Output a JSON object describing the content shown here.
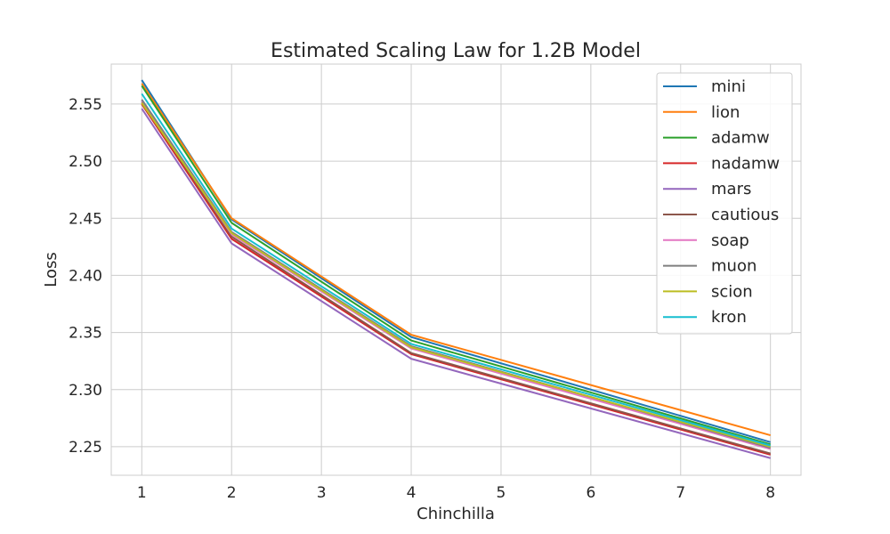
{
  "chart_data": {
    "type": "line",
    "title": "Estimated Scaling Law for 1.2B Model",
    "xlabel": "Chinchilla",
    "ylabel": "Loss",
    "x": [
      1,
      2,
      4,
      8
    ],
    "xticks": [
      1,
      2,
      3,
      4,
      5,
      6,
      7,
      8
    ],
    "xtick_labels": [
      "1",
      "2",
      "3",
      "4",
      "5",
      "6",
      "7",
      "8"
    ],
    "yticks": [
      2.25,
      2.3,
      2.35,
      2.4,
      2.45,
      2.5,
      2.55
    ],
    "ytick_labels": [
      "2.25",
      "2.30",
      "2.35",
      "2.40",
      "2.45",
      "2.50",
      "2.55"
    ],
    "xlim": [
      0.66,
      8.34
    ],
    "ylim": [
      2.225,
      2.585
    ],
    "grid": true,
    "legend_position": "top-right",
    "series": [
      {
        "name": "mini",
        "color": "#1f77b4",
        "values": [
          2.571,
          2.449,
          2.346,
          2.254
        ]
      },
      {
        "name": "lion",
        "color": "#ff7f0e",
        "values": [
          2.568,
          2.45,
          2.348,
          2.26
        ]
      },
      {
        "name": "adamw",
        "color": "#2ca02c",
        "values": [
          2.566,
          2.446,
          2.343,
          2.252
        ]
      },
      {
        "name": "nadamw",
        "color": "#d62728",
        "values": [
          2.55,
          2.432,
          2.331,
          2.243
        ]
      },
      {
        "name": "mars",
        "color": "#9467bd",
        "values": [
          2.546,
          2.428,
          2.327,
          2.24
        ]
      },
      {
        "name": "cautious",
        "color": "#8c564b",
        "values": [
          2.552,
          2.434,
          2.332,
          2.244
        ]
      },
      {
        "name": "soap",
        "color": "#e377c2",
        "values": [
          2.553,
          2.436,
          2.336,
          2.248
        ]
      },
      {
        "name": "muon",
        "color": "#7f7f7f",
        "values": [
          2.554,
          2.438,
          2.338,
          2.249
        ]
      },
      {
        "name": "scion",
        "color": "#bcbd22",
        "values": [
          2.551,
          2.437,
          2.337,
          2.25
        ]
      },
      {
        "name": "kron",
        "color": "#17becf",
        "values": [
          2.559,
          2.441,
          2.34,
          2.251
        ]
      }
    ]
  }
}
